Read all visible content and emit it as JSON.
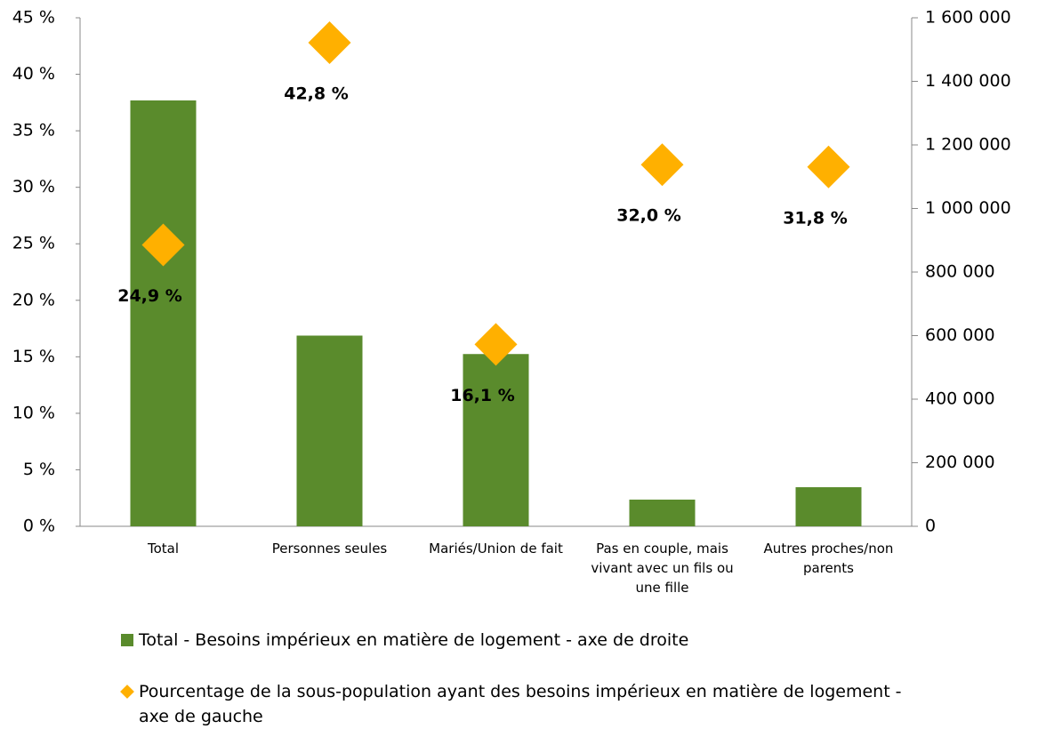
{
  "chart_data": {
    "type": "bar",
    "categories": [
      "Total",
      "Personnes seules",
      "Mariés/Union de fait",
      "Pas en couple, mais vivant avec un fils ou une fille",
      "Autres proches/non parents"
    ],
    "series": [
      {
        "name": "Total - Besoins impérieux en matière de logement - axe de droite",
        "type": "bar",
        "axis": "y2",
        "color": "#5a8b2c",
        "values": [
          1340000,
          600000,
          542000,
          84000,
          123000
        ]
      },
      {
        "name": "Pourcentage de la sous-population ayant des besoins impérieux en matière de logement - axe de gauche",
        "type": "scatter",
        "axis": "y",
        "color": "#ffb000",
        "values": [
          24.9,
          42.8,
          16.1,
          32.0,
          31.8
        ],
        "value_labels": [
          "24,9 %",
          "42,8 %",
          "16,1 %",
          "32,0 %",
          "31,8 %"
        ]
      }
    ],
    "ylim": [
      0,
      45
    ],
    "yticks": [
      {
        "value": 0,
        "label": "0 %"
      },
      {
        "value": 5,
        "label": "5 %"
      },
      {
        "value": 10,
        "label": "10 %"
      },
      {
        "value": 15,
        "label": "15 %"
      },
      {
        "value": 20,
        "label": "20 %"
      },
      {
        "value": 25,
        "label": "25 %"
      },
      {
        "value": 30,
        "label": "30 %"
      },
      {
        "value": 35,
        "label": "35 %"
      },
      {
        "value": 40,
        "label": "40 %"
      },
      {
        "value": 45,
        "label": "45 %"
      }
    ],
    "y2lim": [
      0,
      1600000
    ],
    "y2ticks": [
      0,
      {
        "value": 200000,
        "label": "200 000"
      },
      {
        "value": 400000,
        "label": "400 000"
      },
      {
        "value": 600000,
        "label": "600 000"
      },
      {
        "value": 800000,
        "label": "800 000"
      },
      {
        "value": 1000000,
        "label": "1 000 000"
      },
      {
        "value": 1200000,
        "label": "1 200 000"
      },
      {
        "value": 1400000,
        "label": "1 400 000"
      },
      {
        "value": 1600000,
        "label": "1 600 000"
      }
    ],
    "legend": "bottom"
  }
}
